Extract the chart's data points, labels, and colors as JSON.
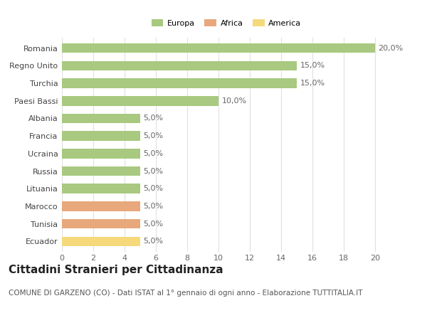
{
  "categories": [
    "Romania",
    "Regno Unito",
    "Turchia",
    "Paesi Bassi",
    "Albania",
    "Francia",
    "Ucraina",
    "Russia",
    "Lituania",
    "Marocco",
    "Tunisia",
    "Ecuador"
  ],
  "values": [
    20.0,
    15.0,
    15.0,
    10.0,
    5.0,
    5.0,
    5.0,
    5.0,
    5.0,
    5.0,
    5.0,
    5.0
  ],
  "colors": [
    "#a8c97f",
    "#a8c97f",
    "#a8c97f",
    "#a8c97f",
    "#a8c97f",
    "#a8c97f",
    "#a8c97f",
    "#a8c97f",
    "#a8c97f",
    "#e8a87c",
    "#e8a87c",
    "#f5d97a"
  ],
  "legend": [
    {
      "label": "Europa",
      "color": "#a8c97f"
    },
    {
      "label": "Africa",
      "color": "#e8a87c"
    },
    {
      "label": "America",
      "color": "#f5d97a"
    }
  ],
  "title": "Cittadini Stranieri per Cittadinanza",
  "subtitle": "COMUNE DI GARZENO (CO) - Dati ISTAT al 1° gennaio di ogni anno - Elaborazione TUTTITALIA.IT",
  "xlim": [
    0,
    21
  ],
  "xticks": [
    0,
    2,
    4,
    6,
    8,
    10,
    12,
    14,
    16,
    18,
    20
  ],
  "bar_height": 0.55,
  "background_color": "#ffffff",
  "grid_color": "#e0e0e0",
  "label_fontsize": 8,
  "tick_fontsize": 8,
  "title_fontsize": 11,
  "subtitle_fontsize": 7.5
}
